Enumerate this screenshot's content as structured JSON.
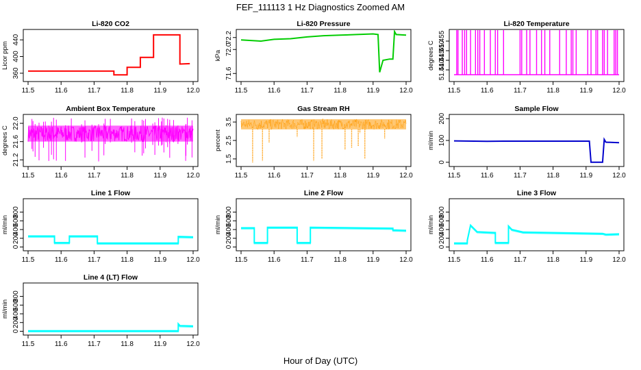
{
  "figure": {
    "title": "FEF_111113  1 Hz Diagnostics Zoomed AM",
    "xlabel": "Hour of Day (UTC)"
  },
  "chart_data": [
    {
      "type": "line",
      "title": "Li-820 CO2",
      "ylabel": "Licor ppm",
      "color": "#ff0000",
      "xlim": [
        11.5,
        12.0
      ],
      "xticks": [
        11.5,
        11.6,
        11.7,
        11.8,
        11.9,
        12.0
      ],
      "ylim": [
        345,
        460
      ],
      "yticks": [
        360,
        400,
        440
      ],
      "series": [
        {
          "x": [
            11.5,
            11.76,
            11.76,
            11.8,
            11.8,
            11.84,
            11.84,
            11.88,
            11.88,
            11.96,
            11.96,
            11.99
          ],
          "y": [
            365,
            365,
            356,
            356,
            374,
            374,
            398,
            398,
            452,
            452,
            382,
            383
          ]
        }
      ]
    },
    {
      "type": "line",
      "title": "Li-820 Pressure",
      "ylabel": "kPa",
      "color": "#00cc00",
      "xlim": [
        11.5,
        12.0
      ],
      "xticks": [
        11.5,
        11.6,
        11.7,
        11.8,
        11.9,
        12.0
      ],
      "ylim": [
        71.5,
        72.3
      ],
      "yticks": [
        71.6,
        72.0,
        72.2
      ],
      "series": [
        {
          "x": [
            11.5,
            11.56,
            11.6,
            11.65,
            11.7,
            11.75,
            11.8,
            11.85,
            11.9,
            11.915,
            11.92,
            11.93,
            11.95,
            11.96,
            11.965,
            11.97,
            12.0
          ],
          "y": [
            72.16,
            72.14,
            72.17,
            72.18,
            72.21,
            72.23,
            72.24,
            72.25,
            72.26,
            72.25,
            71.62,
            71.82,
            71.84,
            71.84,
            72.3,
            72.25,
            72.24
          ]
        }
      ]
    },
    {
      "type": "line",
      "title": "Li-820 Temperature",
      "ylabel": "degrees C",
      "color": "#ff00ff",
      "xlim": [
        11.5,
        12.0
      ],
      "xticks": [
        11.5,
        11.6,
        11.7,
        11.8,
        11.9,
        12.0
      ],
      "ylim": [
        51.435,
        51.46
      ],
      "yticks": [
        51.44,
        51.445,
        51.45,
        51.455
      ],
      "baseline": 51.4375,
      "spikes_x": [
        11.508,
        11.512,
        11.525,
        11.532,
        11.538,
        11.55,
        11.565,
        11.572,
        11.578,
        11.592,
        11.61,
        11.625,
        11.632,
        11.65,
        11.7,
        11.705,
        11.72,
        11.73,
        11.75,
        11.765,
        11.775,
        11.79,
        11.82,
        11.84,
        11.855,
        11.86,
        11.87,
        11.905,
        11.915,
        11.93,
        11.935,
        11.95,
        11.955,
        11.965,
        11.985,
        11.99,
        11.995
      ]
    },
    {
      "type": "line",
      "title": "Ambient Box Temperature",
      "ylabel": "degrees C",
      "color": "#ff00ff",
      "xlim": [
        11.5,
        12.0
      ],
      "xticks": [
        11.5,
        11.6,
        11.7,
        11.8,
        11.9,
        12.0
      ],
      "ylim": [
        21.1,
        22.15
      ],
      "yticks": [
        21.2,
        21.6,
        22.0
      ],
      "band": {
        "low": 21.6,
        "high": 21.95,
        "mid": 21.78
      }
    },
    {
      "type": "scatter",
      "title": "Gas Stream RH",
      "ylabel": "percent",
      "color": "#ff9900",
      "xlim": [
        11.5,
        12.0
      ],
      "xticks": [
        11.5,
        11.6,
        11.7,
        11.8,
        11.9,
        12.0
      ],
      "ylim": [
        1.2,
        3.8
      ],
      "yticks": [
        1.5,
        2.5,
        3.5
      ],
      "band": {
        "low": 3.1,
        "high": 3.65,
        "mid": 3.35
      },
      "dips": [
        {
          "x": 11.535,
          "y": 1.3
        },
        {
          "x": 11.565,
          "y": 1.4
        },
        {
          "x": 11.585,
          "y": 2.4
        },
        {
          "x": 11.67,
          "y": 2.7
        },
        {
          "x": 11.72,
          "y": 1.4
        },
        {
          "x": 11.745,
          "y": 1.5
        },
        {
          "x": 11.815,
          "y": 2.0
        },
        {
          "x": 11.835,
          "y": 2.1
        },
        {
          "x": 11.855,
          "y": 2.2
        },
        {
          "x": 11.86,
          "y": 2.9
        },
        {
          "x": 11.875,
          "y": 1.5
        },
        {
          "x": 11.935,
          "y": 2.6
        }
      ]
    },
    {
      "type": "line",
      "title": "Sample Flow",
      "ylabel": "ml/min",
      "color": "#0000cc",
      "xlim": [
        11.5,
        12.0
      ],
      "xticks": [
        11.5,
        11.6,
        11.7,
        11.8,
        11.9,
        12.0
      ],
      "ylim": [
        -10,
        210
      ],
      "yticks": [
        0,
        100,
        200
      ],
      "series": [
        {
          "x": [
            11.5,
            11.6,
            11.65,
            11.7,
            11.8,
            11.9,
            11.91,
            11.915,
            11.95,
            11.955,
            11.96,
            12.0
          ],
          "y": [
            98,
            96,
            97,
            97,
            97,
            97,
            97,
            0,
            0,
            105,
            92,
            90
          ]
        }
      ]
    },
    {
      "type": "line",
      "title": "Line 1 Flow",
      "ylabel": "ml/min",
      "color": "#00ffff",
      "xlim": [
        11.5,
        12.0
      ],
      "xticks": [
        11.5,
        11.6,
        11.7,
        11.8,
        11.9,
        12.0
      ],
      "ylim": [
        -40,
        1060
      ],
      "yticks": [
        0,
        200,
        400,
        600,
        800
      ],
      "series": [
        {
          "x": [
            11.5,
            11.58,
            11.58,
            11.625,
            11.625,
            11.71,
            11.71,
            11.955,
            11.955,
            12.0
          ],
          "y": [
            250,
            250,
            100,
            100,
            250,
            250,
            90,
            90,
            240,
            230
          ]
        }
      ]
    },
    {
      "type": "line",
      "title": "Line 2 Flow",
      "ylabel": "ml/min",
      "color": "#00ffff",
      "xlim": [
        11.5,
        12.0
      ],
      "xticks": [
        11.5,
        11.6,
        11.7,
        11.8,
        11.9,
        12.0
      ],
      "ylim": [
        -40,
        1060
      ],
      "yticks": [
        0,
        200,
        400,
        600,
        800
      ],
      "series": [
        {
          "x": [
            11.5,
            11.54,
            11.54,
            11.58,
            11.58,
            11.67,
            11.67,
            11.71,
            11.71,
            11.96,
            11.96,
            12.0
          ],
          "y": [
            440,
            440,
            100,
            100,
            450,
            450,
            100,
            100,
            450,
            430,
            390,
            380
          ]
        }
      ]
    },
    {
      "type": "line",
      "title": "Line 3 Flow",
      "ylabel": "ml/min",
      "color": "#00ffff",
      "xlim": [
        11.5,
        12.0
      ],
      "xticks": [
        11.5,
        11.6,
        11.7,
        11.8,
        11.9,
        12.0
      ],
      "ylim": [
        -40,
        1060
      ],
      "yticks": [
        0,
        200,
        400,
        600,
        800
      ],
      "series": [
        {
          "x": [
            11.5,
            11.54,
            11.54,
            11.55,
            11.57,
            11.625,
            11.625,
            11.665,
            11.665,
            11.675,
            11.71,
            11.8,
            11.95,
            11.96,
            12.0
          ],
          "y": [
            90,
            90,
            150,
            500,
            350,
            330,
            100,
            100,
            480,
            400,
            340,
            330,
            310,
            290,
            300
          ]
        }
      ]
    },
    {
      "type": "line",
      "title": "Line 4 (LT) Flow",
      "ylabel": "ml/min",
      "color": "#00ffff",
      "xlim": [
        11.5,
        12.0
      ],
      "xticks": [
        11.5,
        11.6,
        11.7,
        11.8,
        11.9,
        12.0
      ],
      "ylim": [
        -40,
        1060
      ],
      "yticks": [
        0,
        200,
        400,
        600,
        800
      ],
      "series": [
        {
          "x": [
            11.5,
            11.955,
            11.955,
            11.96,
            12.0
          ],
          "y": [
            10,
            10,
            170,
            130,
            120
          ]
        }
      ]
    }
  ]
}
